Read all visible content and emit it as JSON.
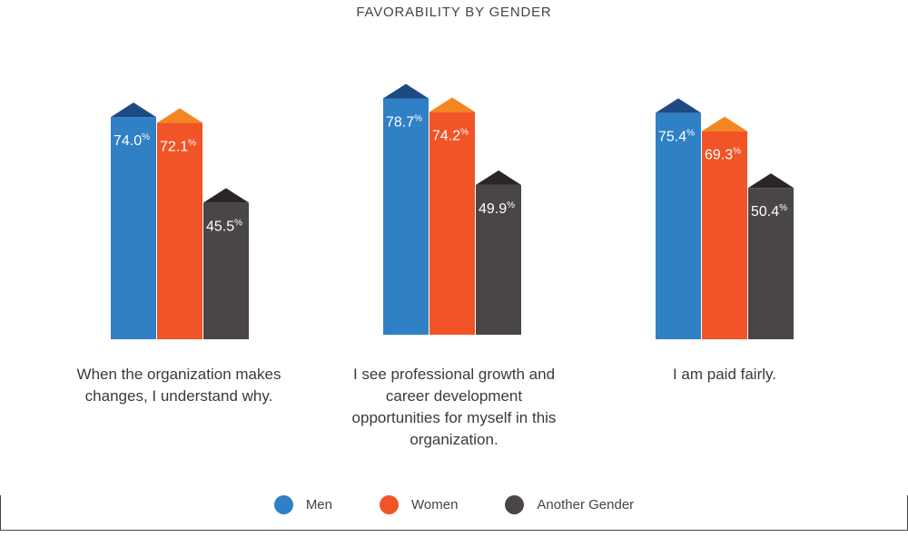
{
  "chart_data": {
    "type": "bar",
    "title": "FAVORABILITY BY GENDER",
    "categories": [
      "When the organization makes changes, I understand why.",
      "I see professional growth and career development opportunities for myself in this organization.",
      "I am paid fairly."
    ],
    "series": [
      {
        "name": "Men",
        "values": [
          74.0,
          78.7,
          75.4
        ],
        "labels": [
          "74.0",
          "78.7",
          "75.4"
        ],
        "color": "#2f80c5",
        "cap_color": "#1e4a83"
      },
      {
        "name": "Women",
        "values": [
          72.1,
          74.2,
          69.3
        ],
        "labels": [
          "72.1",
          "74.2",
          "69.3"
        ],
        "color": "#f05427",
        "cap_color": "#f4861f"
      },
      {
        "name": "Another Gender",
        "values": [
          45.5,
          49.9,
          50.4
        ],
        "labels": [
          "45.5",
          "49.9",
          "50.4"
        ],
        "color": "#4a4646",
        "cap_color": "#2a2626"
      }
    ],
    "value_suffix": "%",
    "legend_position": "bottom",
    "grid": false
  }
}
